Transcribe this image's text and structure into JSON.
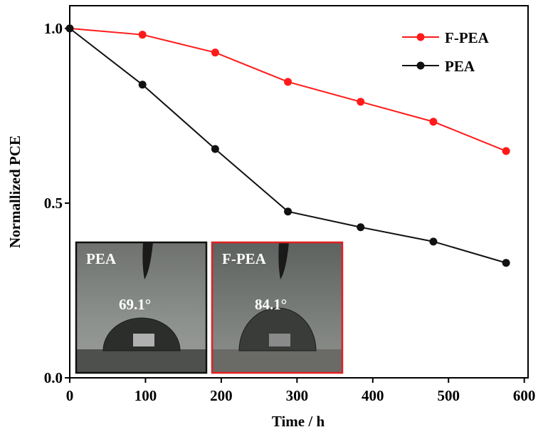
{
  "chart_data": {
    "type": "line",
    "x_label": "Time / h",
    "y_label": "Normallized PCE",
    "xlim": [
      0,
      605
    ],
    "ylim": [
      0,
      1.065
    ],
    "xticks": [
      0,
      100,
      200,
      300,
      400,
      500,
      600
    ],
    "yticks": [
      {
        "value": 0,
        "label": "0.0"
      },
      0.5,
      {
        "value": 1,
        "label": "1.0"
      }
    ],
    "x": [
      0,
      96,
      192,
      288,
      384,
      480,
      576
    ],
    "series": [
      {
        "name": "F-PEA",
        "color": "#ff1a1a",
        "values": [
          1.0,
          0.982,
          0.931,
          0.847,
          0.79,
          0.733,
          0.649
        ]
      },
      {
        "name": "PEA",
        "color": "#111111",
        "values": [
          1.0,
          0.839,
          0.655,
          0.476,
          0.431,
          0.39,
          0.329
        ]
      }
    ],
    "legend": "upper right",
    "insets": [
      {
        "label": "PEA",
        "angle": "69.1°",
        "color": "#111111"
      },
      {
        "label": "F-PEA",
        "angle": "84.1°",
        "color": "#e02020"
      }
    ]
  }
}
